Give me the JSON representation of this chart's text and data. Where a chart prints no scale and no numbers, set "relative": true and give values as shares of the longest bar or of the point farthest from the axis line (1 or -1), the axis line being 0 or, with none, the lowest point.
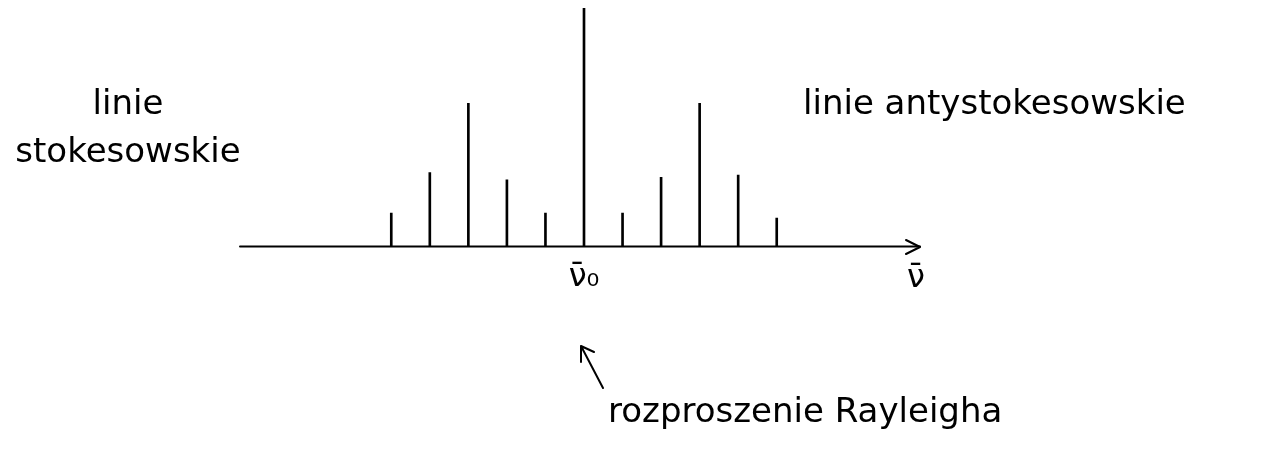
{
  "chart_data": {
    "type": "bar",
    "relative": true,
    "color": "#000000",
    "categories": [
      null,
      null,
      null,
      null,
      null,
      "ν̄₀",
      null,
      null,
      null,
      null,
      null
    ],
    "values": [
      0.14,
      0.31,
      0.6,
      0.28,
      0.14,
      1,
      0.14,
      0.29,
      0.6,
      0.3,
      0.12
    ],
    "xlabel": "ν̄",
    "grid": false,
    "legend": false,
    "annotations": [
      "linie stokesowskie",
      "linie antystokesowskie",
      "rozproszenie Rayleigha"
    ]
  }
}
